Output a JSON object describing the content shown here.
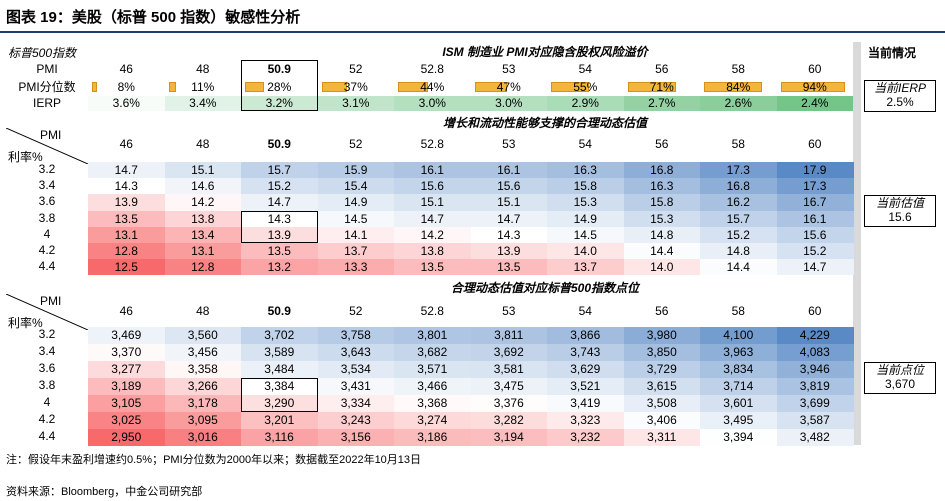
{
  "title": "图表 19：美股（标普 500 指数）敏感性分析",
  "sidebar": {
    "heading": "当前情况",
    "ierp_label": "当前IERP",
    "ierp_value": "2.5%",
    "pe_label": "当前估值",
    "pe_value": "15.6",
    "index_label": "当前点位",
    "index_value": "3,670"
  },
  "section1": {
    "corner_label": "标普500指数",
    "title": "ISM 制造业 PMI对应隐含股权风险溢价",
    "pmi_label": "PMI",
    "pct_label": "PMI分位数",
    "ierp_label": "IERP",
    "pmi": [
      "46",
      "48",
      "50.9",
      "52",
      "52.8",
      "53",
      "54",
      "56",
      "58",
      "60"
    ],
    "pct": [
      "8%",
      "11%",
      "28%",
      "37%",
      "44%",
      "47%",
      "55%",
      "71%",
      "84%",
      "94%"
    ],
    "pct_values": [
      8,
      11,
      28,
      37,
      44,
      47,
      55,
      71,
      84,
      94
    ],
    "ierp": [
      "3.6%",
      "3.4%",
      "3.2%",
      "3.1%",
      "3.0%",
      "3.0%",
      "2.9%",
      "2.7%",
      "2.6%",
      "2.4%"
    ],
    "ierp_values": [
      3.6,
      3.4,
      3.2,
      3.1,
      3.0,
      3.0,
      2.9,
      2.7,
      2.6,
      2.4
    ]
  },
  "section2": {
    "title": "增长和流动性能够支撑的合理动态估值",
    "row_header": "利率%",
    "col_header": "PMI",
    "cols": [
      "46",
      "48",
      "50.9",
      "52",
      "52.8",
      "53",
      "54",
      "56",
      "58",
      "60"
    ],
    "rows": [
      "3.2",
      "3.4",
      "3.6",
      "3.8",
      "4",
      "4.2",
      "4.4"
    ],
    "cells": [
      [
        "14.7",
        "15.1",
        "15.7",
        "15.9",
        "16.1",
        "16.1",
        "16.3",
        "16.8",
        "17.3",
        "17.9"
      ],
      [
        "14.3",
        "14.6",
        "15.2",
        "15.4",
        "15.6",
        "15.6",
        "15.8",
        "16.3",
        "16.8",
        "17.3"
      ],
      [
        "13.9",
        "14.2",
        "14.7",
        "14.9",
        "15.1",
        "15.1",
        "15.3",
        "15.8",
        "16.2",
        "16.7"
      ],
      [
        "13.5",
        "13.8",
        "14.3",
        "14.5",
        "14.7",
        "14.7",
        "14.9",
        "15.3",
        "15.7",
        "16.1"
      ],
      [
        "13.1",
        "13.4",
        "13.9",
        "14.1",
        "14.2",
        "14.3",
        "14.5",
        "14.8",
        "15.2",
        "15.6"
      ],
      [
        "12.8",
        "13.1",
        "13.5",
        "13.7",
        "13.8",
        "13.9",
        "14.0",
        "14.4",
        "14.8",
        "15.2"
      ],
      [
        "12.5",
        "12.8",
        "13.2",
        "13.3",
        "13.5",
        "13.5",
        "13.7",
        "14.0",
        "14.4",
        "14.7"
      ]
    ]
  },
  "section3": {
    "title": "合理动态估值对应标普500指数点位",
    "row_header": "利率%",
    "col_header": "PMI",
    "cols": [
      "46",
      "48",
      "50.9",
      "52",
      "52.8",
      "53",
      "54",
      "56",
      "58",
      "60"
    ],
    "rows": [
      "3.2",
      "3.4",
      "3.6",
      "3.8",
      "4",
      "4.2",
      "4.4"
    ],
    "cells": [
      [
        "3,469",
        "3,560",
        "3,702",
        "3,758",
        "3,801",
        "3,811",
        "3,866",
        "3,980",
        "4,100",
        "4,229"
      ],
      [
        "3,370",
        "3,456",
        "3,589",
        "3,643",
        "3,682",
        "3,692",
        "3,743",
        "3,850",
        "3,963",
        "4,083"
      ],
      [
        "3,277",
        "3,358",
        "3,484",
        "3,534",
        "3,571",
        "3,581",
        "3,629",
        "3,729",
        "3,834",
        "3,946"
      ],
      [
        "3,189",
        "3,266",
        "3,384",
        "3,431",
        "3,466",
        "3,475",
        "3,521",
        "3,615",
        "3,714",
        "3,819"
      ],
      [
        "3,105",
        "3,178",
        "3,290",
        "3,334",
        "3,368",
        "3,376",
        "3,419",
        "3,508",
        "3,601",
        "3,699"
      ],
      [
        "3,025",
        "3,095",
        "3,201",
        "3,243",
        "3,274",
        "3,282",
        "3,323",
        "3,406",
        "3,495",
        "3,587"
      ],
      [
        "2,950",
        "3,016",
        "3,116",
        "3,156",
        "3,186",
        "3,194",
        "3,232",
        "3,311",
        "3,394",
        "3,482"
      ]
    ]
  },
  "footer": {
    "note": "注：假设年末盈利增速约0.5%；PMI分位数为2000年以来；数据截至2022年10月13日",
    "source": "资料来源：Bloomberg，中金公司研究部"
  },
  "colors": {
    "heat_low": "#f8696b",
    "heat_mid": "#ffffff",
    "heat_high": "#5a8ac6",
    "ierp_green": "#63be7b",
    "bar_fill": "#f2b63a",
    "title_rule": "#1f3b73"
  },
  "chart_data": [
    {
      "type": "bar",
      "title": "ISM 制造业 PMI对应隐含股权风险溢价",
      "categories": [
        "46",
        "48",
        "50.9",
        "52",
        "52.8",
        "53",
        "54",
        "56",
        "58",
        "60"
      ],
      "series": [
        {
          "name": "PMI分位数",
          "values": [
            8,
            11,
            28,
            37,
            44,
            47,
            55,
            71,
            84,
            94
          ]
        },
        {
          "name": "IERP",
          "values": [
            3.6,
            3.4,
            3.2,
            3.1,
            3.0,
            3.0,
            2.9,
            2.7,
            2.6,
            2.4
          ]
        }
      ]
    },
    {
      "type": "heatmap",
      "title": "增长和流动性能够支撑的合理动态估值",
      "x": [
        "46",
        "48",
        "50.9",
        "52",
        "52.8",
        "53",
        "54",
        "56",
        "58",
        "60"
      ],
      "y": [
        "3.2",
        "3.4",
        "3.6",
        "3.8",
        "4",
        "4.2",
        "4.4"
      ],
      "xlabel": "PMI",
      "ylabel": "利率%",
      "values": [
        [
          14.7,
          15.1,
          15.7,
          15.9,
          16.1,
          16.1,
          16.3,
          16.8,
          17.3,
          17.9
        ],
        [
          14.3,
          14.6,
          15.2,
          15.4,
          15.6,
          15.6,
          15.8,
          16.3,
          16.8,
          17.3
        ],
        [
          13.9,
          14.2,
          14.7,
          14.9,
          15.1,
          15.1,
          15.3,
          15.8,
          16.2,
          16.7
        ],
        [
          13.5,
          13.8,
          14.3,
          14.5,
          14.7,
          14.7,
          14.9,
          15.3,
          15.7,
          16.1
        ],
        [
          13.1,
          13.4,
          13.9,
          14.1,
          14.2,
          14.3,
          14.5,
          14.8,
          15.2,
          15.6
        ],
        [
          12.8,
          13.1,
          13.5,
          13.7,
          13.8,
          13.9,
          14.0,
          14.4,
          14.8,
          15.2
        ],
        [
          12.5,
          12.8,
          13.2,
          13.3,
          13.5,
          13.5,
          13.7,
          14.0,
          14.4,
          14.7
        ]
      ]
    },
    {
      "type": "heatmap",
      "title": "合理动态估值对应标普500指数点位",
      "x": [
        "46",
        "48",
        "50.9",
        "52",
        "52.8",
        "53",
        "54",
        "56",
        "58",
        "60"
      ],
      "y": [
        "3.2",
        "3.4",
        "3.6",
        "3.8",
        "4",
        "4.2",
        "4.4"
      ],
      "xlabel": "PMI",
      "ylabel": "利率%",
      "values": [
        [
          3469,
          3560,
          3702,
          3758,
          3801,
          3811,
          3866,
          3980,
          4100,
          4229
        ],
        [
          3370,
          3456,
          3589,
          3643,
          3682,
          3692,
          3743,
          3850,
          3963,
          4083
        ],
        [
          3277,
          3358,
          3484,
          3534,
          3571,
          3581,
          3629,
          3729,
          3834,
          3946
        ],
        [
          3189,
          3266,
          3384,
          3431,
          3466,
          3475,
          3521,
          3615,
          3714,
          3819
        ],
        [
          3105,
          3178,
          3290,
          3334,
          3368,
          3376,
          3419,
          3508,
          3601,
          3699
        ],
        [
          3025,
          3095,
          3201,
          3243,
          3274,
          3282,
          3323,
          3406,
          3495,
          3587
        ],
        [
          2950,
          3016,
          3116,
          3156,
          3186,
          3194,
          3232,
          3311,
          3394,
          3482
        ]
      ]
    }
  ]
}
